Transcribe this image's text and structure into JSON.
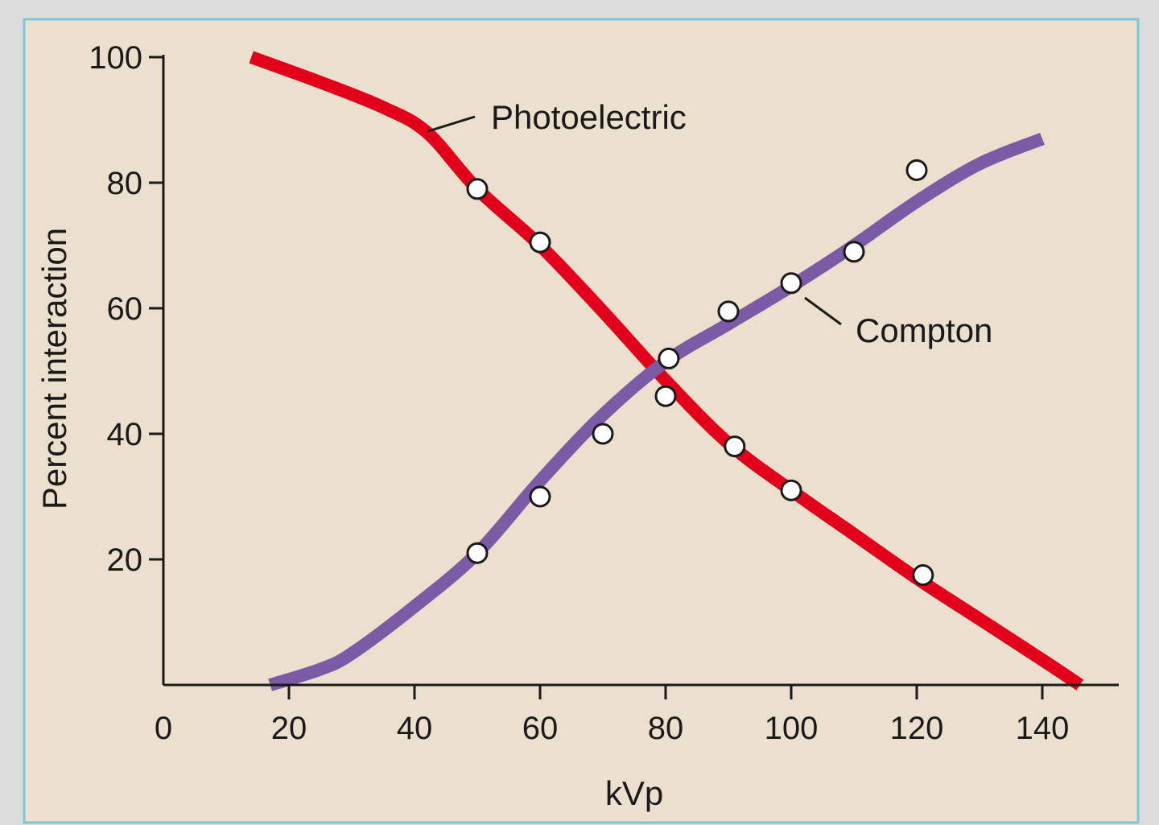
{
  "colors": {
    "page_background": "#dcdcdc",
    "panel_background": "#ebdfcd",
    "panel_border": "#7cc6dc",
    "axis": "#1a1a1a",
    "photoelectric": "#e2001a",
    "compton": "#7b5aa6",
    "marker_fill": "#ffffff",
    "marker_stroke": "#1a1a1a"
  },
  "chart_data": {
    "type": "line",
    "title": "",
    "xlabel": "kVp",
    "ylabel": "Percent interaction",
    "xlim": [
      0,
      152
    ],
    "ylim": [
      0,
      100
    ],
    "x_ticks": [
      0,
      20,
      40,
      60,
      80,
      100,
      120,
      140
    ],
    "x_tick_labels": [
      "0",
      "20",
      "40",
      "60",
      "80",
      "100",
      "120",
      "140"
    ],
    "y_ticks": [
      20,
      40,
      60,
      80,
      100
    ],
    "y_tick_labels": [
      "20",
      "40",
      "60",
      "80",
      "100"
    ],
    "grid": false,
    "legend": "none",
    "series": [
      {
        "name": "Photoelectric",
        "color": "#e2001a",
        "curve": [
          [
            14,
            100
          ],
          [
            25,
            96
          ],
          [
            35,
            92
          ],
          [
            42,
            88
          ],
          [
            50,
            79
          ],
          [
            60,
            70
          ],
          [
            70,
            59.5
          ],
          [
            80,
            48.5
          ],
          [
            90,
            38.5
          ],
          [
            100,
            31
          ],
          [
            110,
            24
          ],
          [
            120,
            17
          ],
          [
            130,
            10.5
          ],
          [
            140,
            4
          ],
          [
            146,
            0
          ]
        ],
        "points": [
          [
            50,
            79
          ],
          [
            60,
            70.5
          ],
          [
            80,
            46
          ],
          [
            91,
            38
          ],
          [
            100,
            31
          ],
          [
            121,
            17.5
          ]
        ]
      },
      {
        "name": "Compton",
        "color": "#7b5aa6",
        "curve": [
          [
            17,
            0
          ],
          [
            25,
            2.5
          ],
          [
            30,
            5
          ],
          [
            40,
            12.5
          ],
          [
            50,
            21
          ],
          [
            60,
            32.5
          ],
          [
            70,
            43
          ],
          [
            80,
            51.5
          ],
          [
            90,
            57.5
          ],
          [
            100,
            63.5
          ],
          [
            110,
            70
          ],
          [
            120,
            77
          ],
          [
            130,
            83
          ],
          [
            140,
            87
          ]
        ],
        "points": [
          [
            50,
            21
          ],
          [
            60,
            30
          ],
          [
            70,
            40
          ],
          [
            80.5,
            52
          ],
          [
            90,
            59.5
          ],
          [
            100,
            64
          ],
          [
            110,
            69
          ],
          [
            120,
            82
          ]
        ]
      }
    ]
  }
}
